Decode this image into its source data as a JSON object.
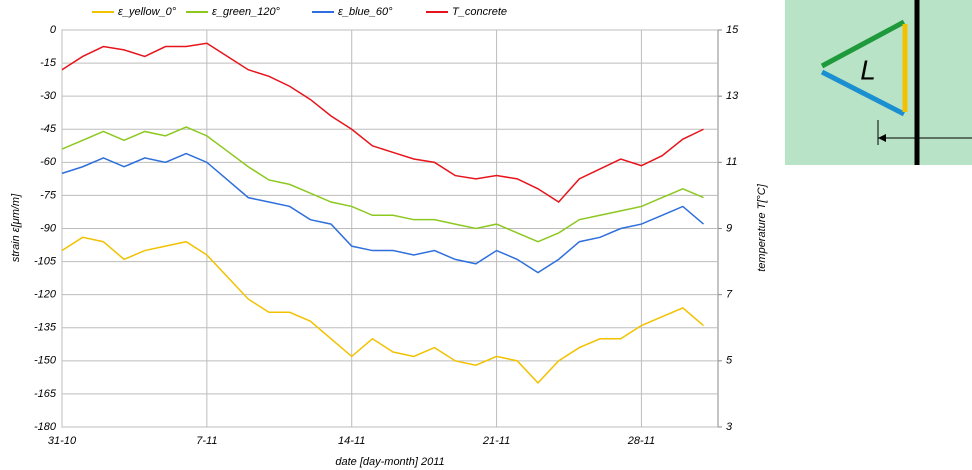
{
  "chart_data": {
    "type": "line",
    "xlabel": "date [day-month] 2011",
    "ylabel": "strain ε[μm/m]",
    "y2label": "temperature T[°C]",
    "x": [
      0,
      1,
      2,
      3,
      4,
      5,
      6,
      7,
      8,
      9,
      10,
      11,
      12,
      13,
      14,
      15,
      16,
      17,
      18,
      19,
      20,
      21,
      22,
      23,
      24,
      25,
      26,
      27,
      28,
      29,
      30,
      31
    ],
    "xlim": [
      0,
      31.7
    ],
    "xticks": [
      {
        "value": 0,
        "label": "31-10"
      },
      {
        "value": 7,
        "label": "7-11"
      },
      {
        "value": 14,
        "label": "14-11"
      },
      {
        "value": 21,
        "label": "21-11"
      },
      {
        "value": 28,
        "label": "28-11"
      }
    ],
    "ylim": [
      -180,
      0
    ],
    "yticks": [
      -180,
      -165,
      -150,
      -135,
      -120,
      -105,
      -90,
      -75,
      -60,
      -45,
      -30,
      -15,
      0
    ],
    "y2lim": [
      3,
      15
    ],
    "y2ticks": [
      3,
      5,
      7,
      9,
      11,
      13,
      15
    ],
    "grid": true,
    "series": [
      {
        "name": "ε_yellow_0°",
        "color": "#f2c200",
        "values": [
          -100,
          -94,
          -96,
          -104,
          -100,
          -98,
          -96,
          -102,
          -112,
          -122,
          -128,
          -128,
          -132,
          -140,
          -148,
          -140,
          -146,
          -148,
          -144,
          -150,
          -152,
          -148,
          -150,
          -160,
          -150,
          -144,
          -140,
          -140,
          -134,
          -130,
          -126,
          -134
        ]
      },
      {
        "name": "ε_green_120°",
        "color": "#8cc820",
        "values": [
          -54,
          -50,
          -46,
          -50,
          -46,
          -48,
          -44,
          -48,
          -55,
          -62,
          -68,
          -70,
          -74,
          -78,
          -80,
          -84,
          -84,
          -86,
          -86,
          -88,
          -90,
          -88,
          -92,
          -96,
          -92,
          -86,
          -84,
          -82,
          -80,
          -76,
          -72,
          -76
        ]
      },
      {
        "name": "ε_blue_60°",
        "color": "#2e6fdc",
        "values": [
          -65,
          -62,
          -58,
          -62,
          -58,
          -60,
          -56,
          -60,
          -68,
          -76,
          -78,
          -80,
          -86,
          -88,
          -98,
          -100,
          -100,
          -102,
          -100,
          -104,
          -106,
          -100,
          -104,
          -110,
          -104,
          -96,
          -94,
          -90,
          -88,
          -84,
          -80,
          -88
        ]
      },
      {
        "name": "T_concrete",
        "color": "#e8141c",
        "axis": "y2",
        "values": [
          13.8,
          14.2,
          14.5,
          14.4,
          14.2,
          14.5,
          14.5,
          14.6,
          14.2,
          13.8,
          13.6,
          13.3,
          12.9,
          12.4,
          12.0,
          11.5,
          11.3,
          11.1,
          11.0,
          10.6,
          10.5,
          10.6,
          10.5,
          10.2,
          9.8,
          10.5,
          10.8,
          11.1,
          10.9,
          11.2,
          11.7,
          12.0
        ]
      }
    ]
  },
  "inset": {
    "label": "L"
  }
}
